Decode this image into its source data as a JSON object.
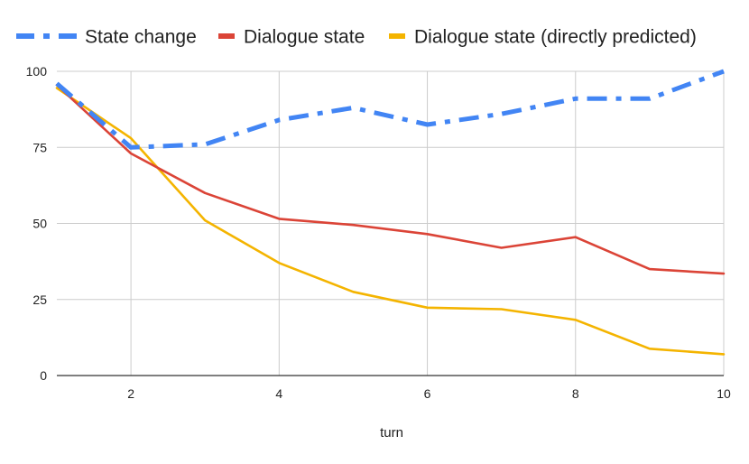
{
  "chart_data": {
    "type": "line",
    "title": "",
    "xlabel": "turn",
    "ylabel": "",
    "xlim": [
      1,
      10
    ],
    "ylim": [
      0,
      100
    ],
    "x": [
      1,
      2,
      3,
      4,
      5,
      6,
      7,
      8,
      9,
      10
    ],
    "x_ticks": [
      2,
      4,
      6,
      8,
      10
    ],
    "y_ticks": [
      0,
      25,
      50,
      75,
      100
    ],
    "grid": true,
    "legend_position": "top",
    "series": [
      {
        "name": "State change",
        "color": "#4285F4",
        "style": "dash-dot",
        "values": [
          96,
          75,
          76,
          84,
          88,
          82.5,
          86,
          91,
          91,
          100
        ]
      },
      {
        "name": "Dialogue state",
        "color": "#DB4437",
        "style": "solid",
        "values": [
          95.5,
          73,
          60,
          51.5,
          49.5,
          46.5,
          42,
          45.5,
          35,
          33.5
        ]
      },
      {
        "name": "Dialogue state (directly predicted)",
        "color": "#F4B400",
        "style": "solid",
        "values": [
          94.5,
          78,
          51,
          37,
          27.5,
          22.3,
          21.8,
          18.3,
          8.8,
          7
        ]
      }
    ]
  }
}
